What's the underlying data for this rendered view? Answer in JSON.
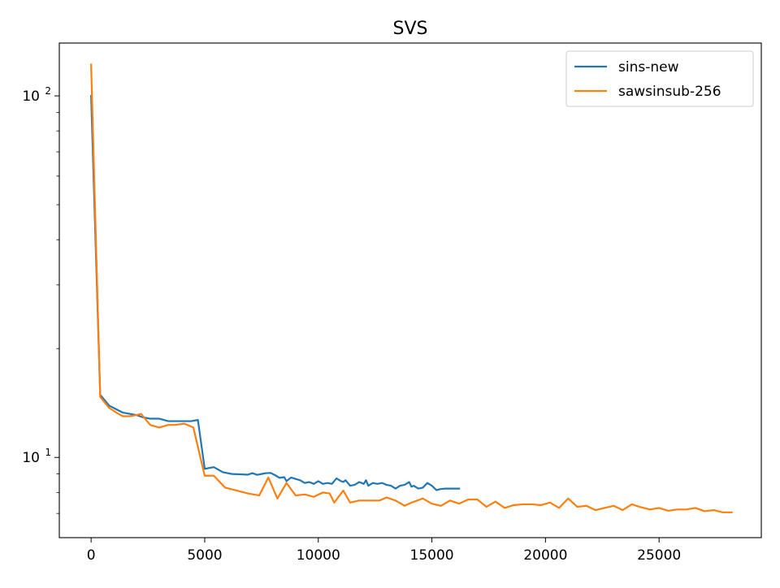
{
  "chart_data": {
    "type": "line",
    "title": "SVS",
    "xlabel": "",
    "ylabel": "",
    "xlim": [
      -1400,
      29500
    ],
    "ylim": [
      6.0,
      140
    ],
    "yscale": "log",
    "grid": false,
    "legend_position": "top-right",
    "x_ticks": [
      0,
      5000,
      10000,
      15000,
      20000,
      25000
    ],
    "x_tick_labels": [
      "0",
      "5000",
      "10000",
      "15000",
      "20000",
      "25000"
    ],
    "y_major_ticks": [
      10,
      100
    ],
    "y_major_tick_labels": [
      {
        "base": "10",
        "exp": "1"
      },
      {
        "base": "10",
        "exp": "2"
      }
    ],
    "y_minor_ticks": [
      7,
      8,
      9,
      20,
      30,
      40,
      50,
      60,
      70,
      80,
      90
    ],
    "series": [
      {
        "name": "sins-new",
        "color": "#1f77b4",
        "x": [
          0,
          400,
          800,
          1200,
          1400,
          1700,
          2000,
          2300,
          2600,
          3000,
          3400,
          3700,
          4100,
          4400,
          4700,
          5000,
          5400,
          5800,
          6200,
          6600,
          6900,
          7100,
          7300,
          7500,
          7700,
          7900,
          8100,
          8300,
          8500,
          8600,
          8800,
          9000,
          9200,
          9400,
          9600,
          9800,
          10000,
          10200,
          10400,
          10600,
          10800,
          11000,
          11100,
          11200,
          11400,
          11600,
          11800,
          12000,
          12100,
          12200,
          12400,
          12600,
          12800,
          13000,
          13200,
          13400,
          13600,
          13800,
          14000,
          14100,
          14200,
          14400,
          14600,
          14800,
          15000,
          15200,
          15400,
          15600,
          16000,
          16200
        ],
        "values": [
          100,
          14.9,
          13.9,
          13.5,
          13.3,
          13.2,
          13.1,
          12.9,
          12.8,
          12.8,
          12.6,
          12.6,
          12.6,
          12.6,
          12.7,
          9.3,
          9.4,
          9.1,
          9.0,
          8.98,
          8.96,
          9.05,
          8.95,
          9.0,
          9.05,
          9.06,
          8.93,
          8.78,
          8.82,
          8.6,
          8.8,
          8.72,
          8.65,
          8.5,
          8.55,
          8.45,
          8.6,
          8.45,
          8.5,
          8.45,
          8.75,
          8.6,
          8.55,
          8.65,
          8.35,
          8.4,
          8.55,
          8.45,
          8.65,
          8.35,
          8.5,
          8.45,
          8.5,
          8.4,
          8.35,
          8.2,
          8.35,
          8.4,
          8.55,
          8.3,
          8.35,
          8.2,
          8.25,
          8.5,
          8.35,
          8.12,
          8.18,
          8.2,
          8.2,
          8.2
        ]
      },
      {
        "name": "sawsinsub-256",
        "color": "#ff7f0e",
        "x": [
          0,
          400,
          800,
          1200,
          1400,
          1700,
          2000,
          2200,
          2600,
          3000,
          3400,
          3700,
          4100,
          4500,
          5000,
          5400,
          5900,
          6400,
          6900,
          7400,
          7800,
          8200,
          8600,
          9000,
          9400,
          9800,
          10200,
          10500,
          10700,
          11100,
          11400,
          11800,
          12200,
          12700,
          13000,
          13400,
          13800,
          14100,
          14600,
          15000,
          15400,
          15800,
          16200,
          16600,
          17000,
          17400,
          17800,
          18200,
          18600,
          19000,
          19400,
          19800,
          20200,
          20600,
          21000,
          21400,
          21800,
          22200,
          22600,
          23000,
          23400,
          23800,
          24200,
          24600,
          25000,
          25400,
          25800,
          26200,
          26600,
          27000,
          27400,
          27800,
          28200
        ],
        "values": [
          122,
          14.7,
          13.7,
          13.2,
          13.0,
          13.0,
          13.1,
          13.2,
          12.3,
          12.1,
          12.3,
          12.3,
          12.4,
          12.1,
          8.9,
          8.9,
          8.25,
          8.1,
          7.95,
          7.85,
          8.8,
          7.7,
          8.5,
          7.85,
          7.9,
          7.78,
          8.0,
          7.95,
          7.5,
          8.1,
          7.5,
          7.6,
          7.6,
          7.6,
          7.75,
          7.6,
          7.35,
          7.5,
          7.7,
          7.45,
          7.35,
          7.6,
          7.45,
          7.65,
          7.65,
          7.3,
          7.55,
          7.25,
          7.38,
          7.42,
          7.42,
          7.38,
          7.5,
          7.25,
          7.7,
          7.3,
          7.35,
          7.15,
          7.25,
          7.35,
          7.15,
          7.42,
          7.28,
          7.18,
          7.25,
          7.12,
          7.18,
          7.18,
          7.25,
          7.1,
          7.15,
          7.05,
          7.05
        ]
      }
    ]
  }
}
